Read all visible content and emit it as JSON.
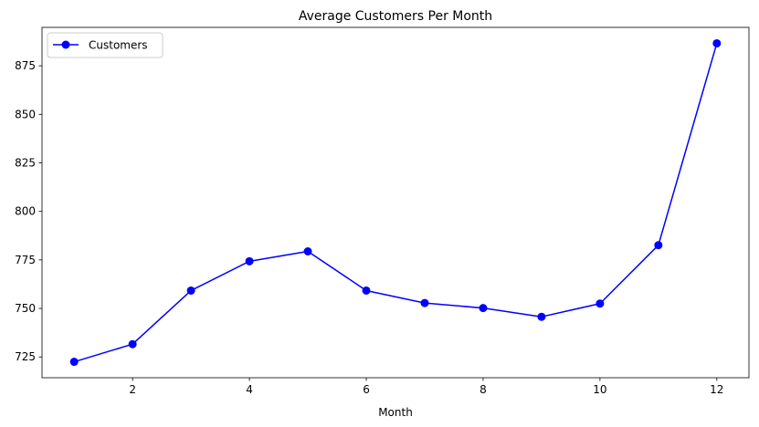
{
  "chart_data": {
    "type": "line",
    "title": "Average Customers Per Month",
    "xlabel": "Month",
    "ylabel": "",
    "x": [
      1,
      2,
      3,
      4,
      5,
      6,
      7,
      8,
      9,
      10,
      11,
      12
    ],
    "series": [
      {
        "name": "Customers",
        "color": "#0000ff",
        "marker": "circle",
        "values": [
          722.5,
          731.6,
          759.2,
          774.3,
          779.4,
          759.2,
          752.8,
          750.2,
          745.7,
          752.5,
          782.6,
          886.6
        ]
      }
    ],
    "xlim": [
      0.45,
      12.55
    ],
    "ylim": [
      714.3,
      894.8
    ],
    "xticks": [
      2,
      4,
      6,
      8,
      10,
      12
    ],
    "yticks": [
      725,
      750,
      775,
      800,
      825,
      850,
      875
    ],
    "grid": false,
    "legend_position": "top-left"
  }
}
